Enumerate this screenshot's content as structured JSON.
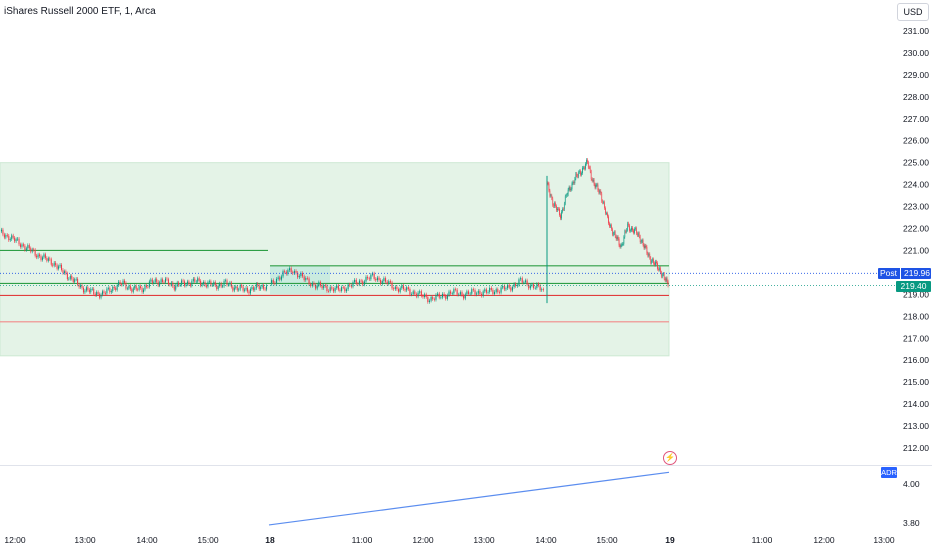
{
  "title": "iShares Russell 2000 ETF, 1, Arca",
  "currency_button": "USD",
  "price_axis": {
    "labels": [
      "231.00",
      "230.00",
      "229.00",
      "228.00",
      "227.00",
      "226.00",
      "225.00",
      "224.00",
      "223.00",
      "222.00",
      "221.00",
      "219.00",
      "218.00",
      "217.00",
      "216.00",
      "215.00",
      "214.00",
      "213.00",
      "212.00"
    ],
    "post_label": "Post",
    "post_price": "219.96",
    "last_price": "219.40"
  },
  "indicator_axis": {
    "labels": [
      "4.00",
      "3.80"
    ],
    "adr_label": "ADR"
  },
  "time_axis": {
    "labels": [
      "12:00",
      "13:00",
      "14:00",
      "15:00",
      "18",
      "11:00",
      "12:00",
      "13:00",
      "14:00",
      "15:00",
      "19",
      "11:00",
      "12:00",
      "13:00"
    ]
  },
  "chart_data": {
    "type": "candlestick",
    "price_range": [
      209.8,
      232.5
    ],
    "current_price": 219.4,
    "post_market_price": 219.96,
    "zones": [
      {
        "type": "range",
        "from": 216.2,
        "to": 225.0,
        "color": "#e4f3e7"
      },
      {
        "type": "range",
        "from": 219.0,
        "to": 220.3,
        "color": "#c9ebdf"
      }
    ],
    "levels": [
      {
        "price": 221.0,
        "color": "#2e9e46"
      },
      {
        "price": 219.5,
        "color": "#2e9e46"
      },
      {
        "price": 220.3,
        "color": "#2e9e46"
      },
      {
        "price": 218.95,
        "color": "#e03d3d"
      },
      {
        "price": 217.75,
        "color": "#f28a8a"
      }
    ],
    "series": [
      {
        "name": "day1",
        "values": [
          221.8,
          221.6,
          221.3,
          221.0,
          220.7,
          220.5,
          220.1,
          219.7,
          219.3,
          219.1,
          219.0,
          219.3,
          219.5,
          219.2,
          219.3,
          219.6,
          219.6,
          219.4,
          219.5,
          219.6,
          219.5,
          219.4,
          219.5,
          219.3,
          219.2,
          219.3,
          219.4
        ]
      },
      {
        "name": "day2",
        "values": [
          219.4,
          219.9,
          220.1,
          219.7,
          219.4,
          219.3,
          219.2,
          219.4,
          219.6,
          219.8,
          219.6,
          219.3,
          219.2,
          219.0,
          218.8,
          218.9,
          219.1,
          219.0,
          219.1,
          219.1,
          219.2,
          219.3,
          219.6,
          219.4,
          219.2
        ]
      },
      {
        "name": "day2_afternoon",
        "values": [
          224.0,
          223.1,
          222.6,
          223.6,
          224.2,
          224.6,
          225.0,
          224.0,
          223.6,
          222.4,
          221.7,
          221.2,
          222.1,
          221.9,
          221.5,
          220.8,
          220.4,
          220.0,
          219.4
        ]
      }
    ],
    "indicator": {
      "name": "ADR",
      "from": 3.79,
      "to": 4.06
    }
  }
}
